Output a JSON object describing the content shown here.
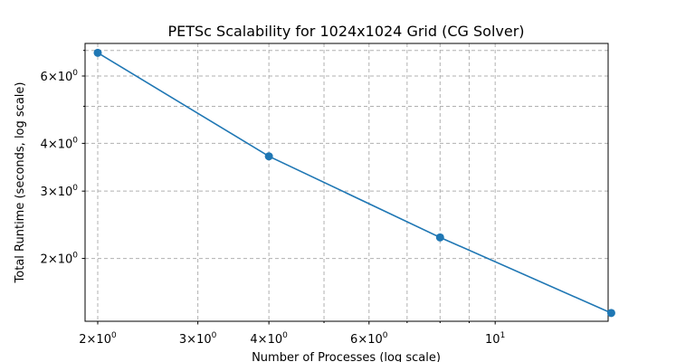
{
  "chart_data": {
    "type": "line",
    "title": "PETSc Scalability for 1024x1024 Grid (CG Solver)",
    "xlabel": "Number of Processes (log scale)",
    "ylabel": "Total Runtime (seconds, log scale)",
    "x_scale": "log",
    "y_scale": "log",
    "xlim": [
      1.9,
      15.8
    ],
    "ylim": [
      1.37,
      7.3
    ],
    "grid": true,
    "x_major_ticks": [
      {
        "value": 2,
        "base": "2×10",
        "exp": "0"
      },
      {
        "value": 3,
        "base": "3×10",
        "exp": "0"
      },
      {
        "value": 4,
        "base": "4×10",
        "exp": "0"
      },
      {
        "value": 6,
        "base": "6×10",
        "exp": "0"
      },
      {
        "value": 10,
        "base": "10",
        "exp": "1"
      }
    ],
    "x_minor_grid": [
      5,
      7,
      8,
      9
    ],
    "y_major_ticks": [
      {
        "value": 2,
        "base": "2×10",
        "exp": "0"
      },
      {
        "value": 3,
        "base": "3×10",
        "exp": "0"
      },
      {
        "value": 4,
        "base": "4×10",
        "exp": "0"
      },
      {
        "value": 6,
        "base": "6×10",
        "exp": "0"
      }
    ],
    "y_minor_grid": [
      5,
      7
    ],
    "series": [
      {
        "color": "#1f77b4",
        "x": [
          2,
          4,
          8,
          16
        ],
        "y": [
          6.9,
          3.7,
          2.27,
          1.44
        ]
      }
    ]
  }
}
